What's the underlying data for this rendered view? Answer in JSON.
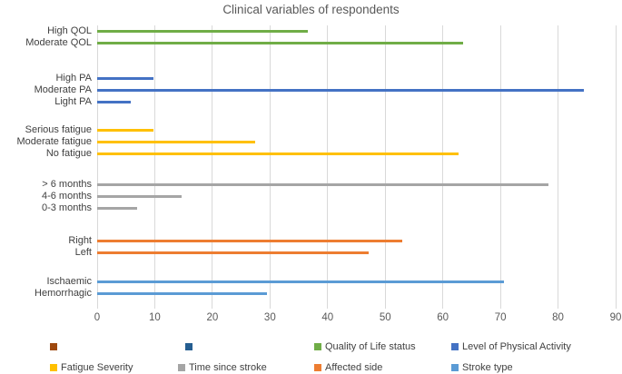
{
  "title": "Clinical variables of respondents",
  "colors": {
    "title_text": "#595959",
    "gridline": "#d9d9d9",
    "category_text": "#404040",
    "tick_text": "#595959",
    "legend_text": "#404040"
  },
  "chart_data": {
    "type": "bar",
    "orientation": "horizontal",
    "title": "Clinical variables of respondents",
    "xlabel": "",
    "ylabel": "",
    "xlim": [
      0,
      90
    ],
    "xticks": [
      0,
      10,
      20,
      30,
      40,
      50,
      60,
      70,
      80,
      90
    ],
    "grid": "vertical",
    "groups": [
      {
        "name": "Quality of Life status",
        "color": "#70AD47",
        "items": [
          {
            "label": "High QOL",
            "value": 36.5
          },
          {
            "label": "Moderate QOL",
            "value": 63.5
          }
        ]
      },
      {
        "name": "Level of Physical Activity",
        "color": "#4472C4",
        "items": [
          {
            "label": "High PA",
            "value": 9.8
          },
          {
            "label": "Moderate PA",
            "value": 84.5
          },
          {
            "label": "Light PA",
            "value": 5.9
          }
        ]
      },
      {
        "name": "Fatigue Severity",
        "color": "#FFC000",
        "items": [
          {
            "label": "Serious fatigue",
            "value": 9.8
          },
          {
            "label": "Moderate fatigue",
            "value": 27.5
          },
          {
            "label": "No fatigue",
            "value": 62.7
          }
        ]
      },
      {
        "name": "Time since stroke",
        "color": "#A5A5A5",
        "items": [
          {
            "label": "> 6 months",
            "value": 78.4
          },
          {
            "label": "4-6 months",
            "value": 14.7
          },
          {
            "label": "0-3 months",
            "value": 6.9
          }
        ]
      },
      {
        "name": "Affected side",
        "color": "#ED7D31",
        "items": [
          {
            "label": "Right",
            "value": 52.9
          },
          {
            "label": "Left",
            "value": 47.1
          }
        ]
      },
      {
        "name": "Stroke type",
        "color": "#5B9BD5",
        "items": [
          {
            "label": "Ischaemic",
            "value": 70.6
          },
          {
            "label": "Hemorrhagic",
            "value": 29.4
          }
        ]
      }
    ],
    "legend": {
      "position": "bottom",
      "rows": [
        [
          {
            "label": "",
            "color": "#9E480E"
          },
          {
            "label": "",
            "color": "#255E91"
          },
          {
            "label": "Quality of Life status",
            "color": "#70AD47"
          },
          {
            "label": "Level of Physical Activity",
            "color": "#4472C4"
          }
        ],
        [
          {
            "label": "Fatigue Severity",
            "color": "#FFC000"
          },
          {
            "label": "Time since stroke",
            "color": "#A5A5A5"
          },
          {
            "label": "Affected side",
            "color": "#ED7D31"
          },
          {
            "label": "Stroke type",
            "color": "#5B9BD5"
          }
        ]
      ]
    }
  }
}
